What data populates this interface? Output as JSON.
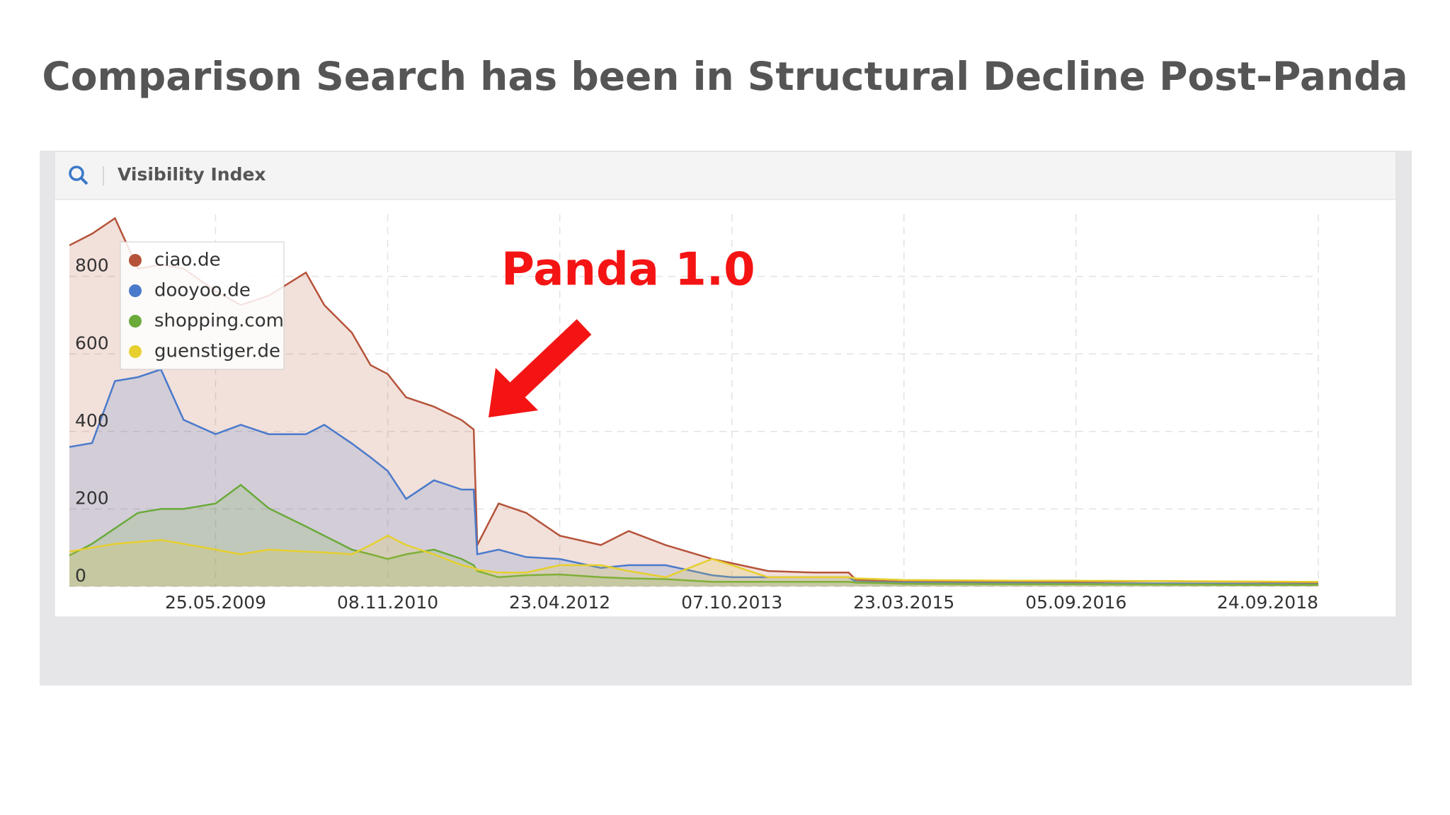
{
  "title": "Comparison Search has been in Structural Decline Post-Panda",
  "panel": {
    "header": "Visibility Index"
  },
  "chart_data": {
    "type": "area",
    "annotation": "Panda 1.0",
    "x": [
      "2008-02-28",
      "2008-05-08",
      "2008-07-18",
      "2008-09-27",
      "2008-12-07",
      "2009-02-15",
      "2009-05-25",
      "2009-08-11",
      "2009-11-05",
      "2010-02-28",
      "2010-04-26",
      "2010-07-20",
      "2010-09-16",
      "2010-11-08",
      "2011-01-04",
      "2011-03-31",
      "2011-06-25",
      "2011-08-01",
      "2011-08-12",
      "2011-10-17",
      "2012-01-10",
      "2012-04-23",
      "2012-08-28",
      "2012-11-22",
      "2013-03-16",
      "2013-08-07",
      "2013-10-07",
      "2014-01-27",
      "2014-06-19",
      "2014-10-03",
      "2014-10-26",
      "2015-03-23",
      "2016-03-10",
      "2016-09-05",
      "2017-05-13",
      "2018-01-31",
      "2018-09-24"
    ],
    "series": [
      {
        "name": "ciao.de",
        "color": "#b5533a",
        "values": [
          880,
          910,
          950,
          820,
          830,
          820,
          762,
          726,
          750,
          810,
          726,
          655,
          571,
          548,
          488,
          464,
          429,
          405,
          107,
          214,
          190,
          131,
          107,
          143,
          107,
          71,
          60,
          40,
          36,
          36,
          17,
          12,
          12,
          12,
          14,
          12,
          10
        ]
      },
      {
        "name": "dooyoo.de",
        "color": "#4a7acb",
        "values": [
          360,
          370,
          530,
          540,
          560,
          430,
          393,
          417,
          393,
          393,
          417,
          369,
          333,
          298,
          226,
          274,
          250,
          250,
          83,
          95,
          76,
          71,
          48,
          55,
          55,
          29,
          24,
          24,
          24,
          24,
          12,
          10,
          9,
          8,
          8,
          7,
          6
        ]
      },
      {
        "name": "shopping.com",
        "color": "#6aaa3a",
        "values": [
          80,
          110,
          150,
          190,
          200,
          200,
          214,
          262,
          202,
          155,
          131,
          95,
          83,
          71,
          83,
          95,
          71,
          55,
          40,
          24,
          29,
          31,
          24,
          21,
          19,
          12,
          12,
          12,
          12,
          12,
          10,
          7,
          6,
          6,
          5,
          4,
          4
        ]
      },
      {
        "name": "guenstiger.de",
        "color": "#e6cf2e",
        "values": [
          90,
          100,
          110,
          115,
          120,
          110,
          95,
          83,
          95,
          90,
          88,
          83,
          107,
          131,
          107,
          83,
          55,
          48,
          43,
          36,
          36,
          55,
          55,
          40,
          24,
          71,
          55,
          24,
          24,
          24,
          21,
          17,
          15,
          15,
          14,
          13,
          12
        ]
      }
    ],
    "xlim": [
      "2008-02-28",
      "2018-09-24"
    ],
    "xticks": [
      {
        "value": "2009-05-25",
        "label": "25.05.2009"
      },
      {
        "value": "2010-11-08",
        "label": "08.11.2010"
      },
      {
        "value": "2012-04-23",
        "label": "23.04.2012"
      },
      {
        "value": "2013-10-07",
        "label": "07.10.2013"
      },
      {
        "value": "2015-03-23",
        "label": "23.03.2015"
      },
      {
        "value": "2016-09-05",
        "label": "05.09.2016"
      },
      {
        "value": "2018-09-24",
        "label": "24.09.2018"
      }
    ],
    "ylim": [
      0,
      960
    ],
    "yticks": [
      0,
      200,
      400,
      600,
      800
    ],
    "grid": true,
    "legend": "upper left"
  }
}
